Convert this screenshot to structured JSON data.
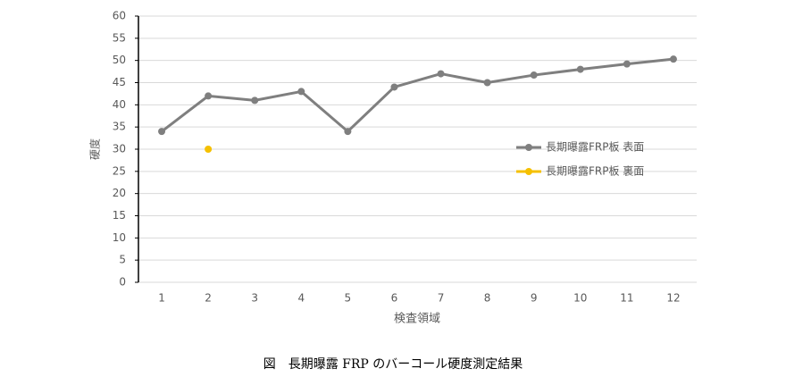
{
  "chart_data": {
    "type": "line",
    "categories": [
      "1",
      "2",
      "3",
      "4",
      "5",
      "6",
      "7",
      "8",
      "9",
      "10",
      "11",
      "12"
    ],
    "series": [
      {
        "name": "長期曝露FRP板 表面",
        "color": "#7f7f7f",
        "values": [
          34,
          42,
          41,
          43,
          34,
          44,
          47,
          45,
          46.7,
          48,
          49.2,
          50.3
        ]
      },
      {
        "name": "長期曝露FRP板 裏面",
        "color": "#f5c000",
        "values": [
          null,
          30,
          null,
          null,
          null,
          null,
          null,
          null,
          null,
          null,
          null,
          null
        ]
      }
    ],
    "ylim": [
      0,
      60
    ],
    "yticks": [
      0,
      5,
      10,
      15,
      20,
      25,
      30,
      35,
      40,
      45,
      50,
      55,
      60
    ],
    "y_label": "硬度",
    "x_label": "検査領域",
    "grid": true,
    "legend": "right",
    "caption": "図　長期曝露 FRP のバーコール硬度測定結果"
  }
}
